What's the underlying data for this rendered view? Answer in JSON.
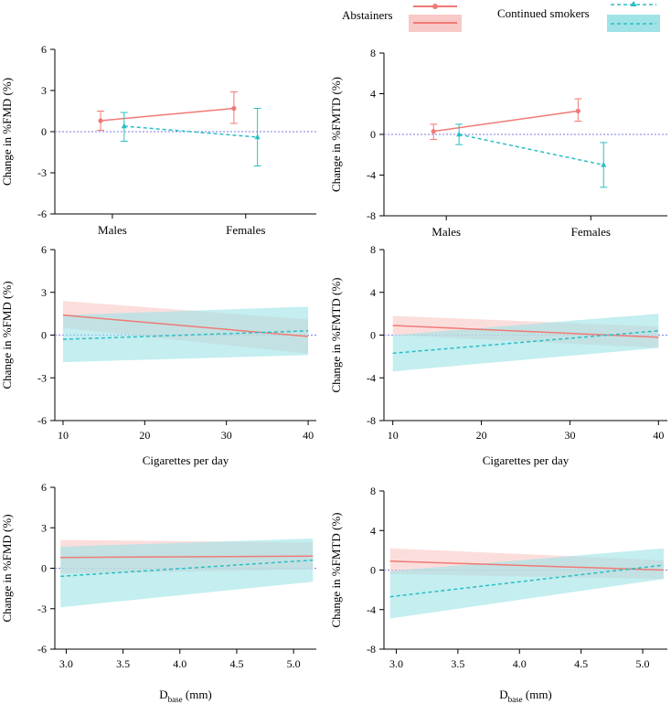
{
  "legend": {
    "abstainers": "Abstainers",
    "continued_smokers": "Continued smokers"
  },
  "colors": {
    "abstainers": "#f07a75",
    "abstainers_band": "#f9c9c7",
    "smokers": "#29bfc4",
    "smokers_band": "#9fe3e6",
    "zero_line": "#7a7ae8"
  },
  "chart_data": [
    {
      "id": "fmd-sex",
      "type": "errorbar",
      "ylabel": "Change in %FMD  (%)",
      "xlabel": "",
      "ylim": [
        -6,
        6
      ],
      "yticks": [
        -6,
        -3,
        0,
        3,
        6
      ],
      "categories": [
        "Males",
        "Females"
      ],
      "series": [
        {
          "name": "Abstainers",
          "style": "solid",
          "marker": "circle",
          "points": [
            {
              "category": "Males",
              "y": 0.8,
              "lo": 0.1,
              "hi": 1.5
            },
            {
              "category": "Females",
              "y": 1.7,
              "lo": 0.6,
              "hi": 2.9
            }
          ]
        },
        {
          "name": "Continued smokers",
          "style": "dashed",
          "marker": "triangle",
          "points": [
            {
              "category": "Males",
              "y": 0.4,
              "lo": -0.7,
              "hi": 1.4
            },
            {
              "category": "Females",
              "y": -0.4,
              "lo": -2.5,
              "hi": 1.7
            }
          ]
        }
      ]
    },
    {
      "id": "fmtd-sex",
      "type": "errorbar",
      "ylabel": "Change in %FMTD  (%)",
      "xlabel": "",
      "ylim": [
        -8,
        8
      ],
      "yticks": [
        -8,
        -4,
        0,
        4,
        8
      ],
      "categories": [
        "Males",
        "Females"
      ],
      "series": [
        {
          "name": "Abstainers",
          "style": "solid",
          "marker": "circle",
          "points": [
            {
              "category": "Males",
              "y": 0.3,
              "lo": -0.5,
              "hi": 1.0
            },
            {
              "category": "Females",
              "y": 2.3,
              "lo": 1.3,
              "hi": 3.5
            }
          ]
        },
        {
          "name": "Continued smokers",
          "style": "dashed",
          "marker": "triangle",
          "points": [
            {
              "category": "Males",
              "y": 0.0,
              "lo": -1.0,
              "hi": 1.0
            },
            {
              "category": "Females",
              "y": -3.0,
              "lo": -5.2,
              "hi": -0.8
            }
          ]
        }
      ]
    },
    {
      "id": "fmd-cig",
      "type": "line",
      "ylabel": "Change in %FMD  (%)",
      "xlabel": "Cigarettes per day",
      "xlim": [
        9,
        41
      ],
      "xticks": [
        10,
        20,
        30,
        40
      ],
      "ylim": [
        -6,
        6
      ],
      "yticks": [
        -6,
        -3,
        0,
        3,
        6
      ],
      "series": [
        {
          "name": "Abstainers",
          "style": "solid",
          "x": [
            10,
            40
          ],
          "y": [
            1.4,
            -0.1
          ],
          "lower": [
            0.5,
            -1.3
          ],
          "upper": [
            2.4,
            1.1
          ]
        },
        {
          "name": "Continued smokers",
          "style": "dashed",
          "x": [
            10,
            40
          ],
          "y": [
            -0.3,
            0.3
          ],
          "lower": [
            -1.9,
            -1.4
          ],
          "upper": [
            1.4,
            2.0
          ]
        }
      ]
    },
    {
      "id": "fmtd-cig",
      "type": "line",
      "ylabel": "Change in %FMTD  (%)",
      "xlabel": "Cigarettes per day",
      "xlim": [
        9,
        41
      ],
      "xticks": [
        10,
        20,
        30,
        40
      ],
      "ylim": [
        -8,
        8
      ],
      "yticks": [
        -8,
        -4,
        0,
        4,
        8
      ],
      "series": [
        {
          "name": "Abstainers",
          "style": "solid",
          "x": [
            10,
            40
          ],
          "y": [
            0.9,
            -0.2
          ],
          "lower": [
            0.0,
            -1.2
          ],
          "upper": [
            1.8,
            0.8
          ]
        },
        {
          "name": "Continued smokers",
          "style": "dashed",
          "x": [
            10,
            40
          ],
          "y": [
            -1.7,
            0.4
          ],
          "lower": [
            -3.4,
            -1.2
          ],
          "upper": [
            0.0,
            2.0
          ]
        }
      ]
    },
    {
      "id": "fmd-dbase",
      "type": "line",
      "ylabel": "Change in %FMD  (%)",
      "xlabel": "D",
      "xlabel_sub": "base",
      "xlabel_tail": " (mm)",
      "xlim": [
        2.9,
        5.2
      ],
      "xticks": [
        3.0,
        3.5,
        4.0,
        4.5,
        5.0
      ],
      "xtick_labels": [
        "3.0",
        "3.5",
        "4.0",
        "4.5",
        "5.0"
      ],
      "ylim": [
        -6,
        6
      ],
      "yticks": [
        -6,
        -3,
        0,
        3,
        6
      ],
      "series": [
        {
          "name": "Abstainers",
          "style": "solid",
          "x": [
            2.95,
            5.17
          ],
          "y": [
            0.8,
            0.9
          ],
          "lower": [
            -0.4,
            -0.1
          ],
          "upper": [
            2.1,
            1.9
          ]
        },
        {
          "name": "Continued smokers",
          "style": "dashed",
          "x": [
            2.95,
            5.17
          ],
          "y": [
            -0.6,
            0.6
          ],
          "lower": [
            -2.9,
            -1.0
          ],
          "upper": [
            1.6,
            2.2
          ]
        }
      ]
    },
    {
      "id": "fmtd-dbase",
      "type": "line",
      "ylabel": "Change in %FMTD  (%)",
      "xlabel": "D",
      "xlabel_sub": "base",
      "xlabel_tail": " (mm)",
      "xlim": [
        2.9,
        5.2
      ],
      "xticks": [
        3.0,
        3.5,
        4.0,
        4.5,
        5.0
      ],
      "xtick_labels": [
        "3.0",
        "3.5",
        "4.0",
        "4.5",
        "5.0"
      ],
      "ylim": [
        -8,
        8
      ],
      "yticks": [
        -8,
        -4,
        0,
        4,
        8
      ],
      "series": [
        {
          "name": "Abstainers",
          "style": "solid",
          "x": [
            2.95,
            5.17
          ],
          "y": [
            0.9,
            0.0
          ],
          "lower": [
            -0.4,
            -0.9
          ],
          "upper": [
            2.2,
            1.0
          ]
        },
        {
          "name": "Continued smokers",
          "style": "dashed",
          "x": [
            2.95,
            5.17
          ],
          "y": [
            -2.7,
            0.5
          ],
          "lower": [
            -4.9,
            -0.9
          ],
          "upper": [
            -0.1,
            2.2
          ]
        }
      ]
    }
  ]
}
